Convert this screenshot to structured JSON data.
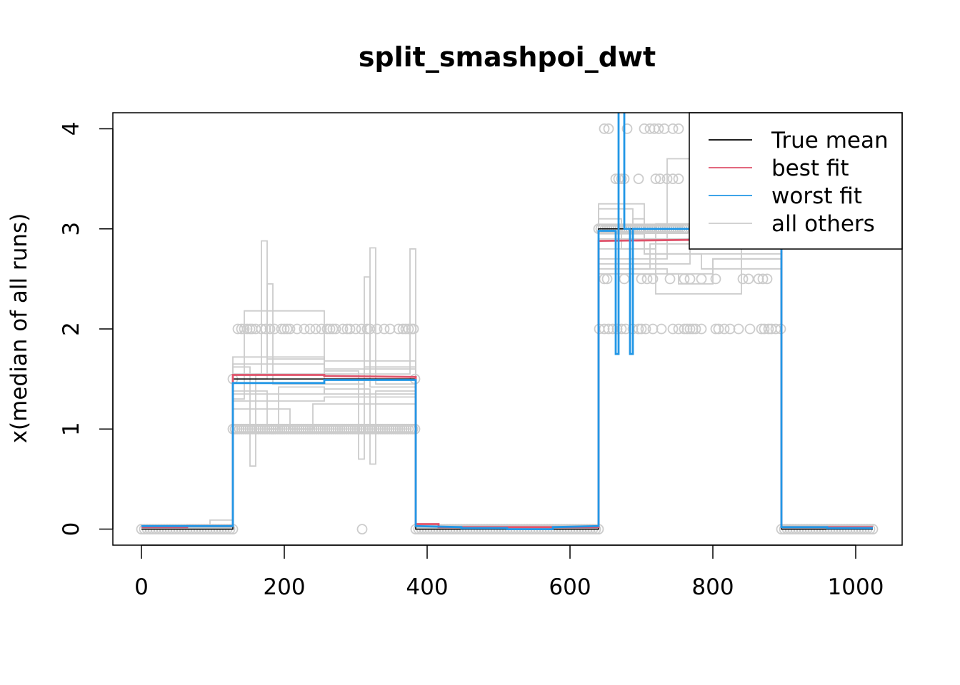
{
  "chart_data": {
    "type": "line",
    "title": "split_smashpoi_dwt",
    "xlabel": "",
    "ylabel": "x(median of all runs)",
    "xlim": [
      -40,
      1065
    ],
    "ylim": [
      -0.16,
      4.16
    ],
    "x_ticks": [
      0,
      200,
      400,
      600,
      800,
      1000
    ],
    "y_ticks": [
      0,
      1,
      2,
      3,
      4
    ],
    "legend_position": "top-right",
    "legend": [
      {
        "label": "True mean",
        "color": "#000000"
      },
      {
        "label": "best fit",
        "color": "#DF536B"
      },
      {
        "label": "worst fit",
        "color": "#2297E6"
      },
      {
        "label": "all others",
        "color": "#CCCCCC"
      }
    ],
    "series": [
      {
        "name": "True mean",
        "color": "#000000",
        "x": [
          0,
          128,
          128,
          384,
          384,
          640,
          640,
          896,
          896,
          1024
        ],
        "y": [
          0,
          0,
          1.5,
          1.5,
          0,
          0,
          3,
          3,
          0,
          0
        ]
      },
      {
        "name": "best fit",
        "color": "#DF536B",
        "x": [
          0,
          64,
          64,
          128,
          128,
          256,
          256,
          384,
          384,
          416,
          416,
          640,
          640,
          896,
          896,
          1024
        ],
        "y": [
          0.02,
          0.02,
          0.03,
          0.03,
          1.54,
          1.54,
          1.53,
          1.52,
          0.05,
          0.05,
          0.02,
          0.02,
          2.88,
          2.9,
          0.02,
          0.02
        ]
      },
      {
        "name": "worst fit",
        "color": "#2297E6",
        "x": [
          0,
          128,
          128,
          256,
          256,
          384,
          384,
          448,
          448,
          512,
          512,
          576,
          576,
          640,
          640,
          664,
          664,
          668,
          668,
          676,
          676,
          684,
          684,
          688,
          688,
          896,
          896,
          960,
          960,
          1024
        ],
        "y": [
          0.03,
          0.03,
          1.46,
          1.46,
          1.49,
          1.49,
          0.03,
          0.02,
          0.01,
          0.01,
          0.0,
          0.0,
          0.02,
          0.03,
          2.98,
          2.98,
          1.75,
          1.75,
          4.4,
          4.4,
          3.0,
          3.0,
          1.75,
          1.75,
          3.0,
          3.0,
          0.02,
          0.02,
          0.01,
          0.01
        ]
      }
    ],
    "others": [
      {
        "x": [
          0,
          96,
          96,
          128,
          128,
          168,
          168,
          176,
          176,
          256,
          256,
          384,
          384,
          640,
          640,
          688,
          688,
          712,
          712,
          896,
          896,
          1024
        ],
        "y": [
          0.02,
          0.02,
          0.09,
          0.09,
          1.55,
          1.55,
          2.88,
          2.88,
          1.7,
          1.7,
          1.6,
          1.6,
          0.03,
          0.03,
          3.2,
          3.2,
          2.6,
          2.6,
          2.85,
          2.85,
          0.02,
          0.02
        ]
      },
      {
        "x": [
          0,
          128,
          128,
          176,
          176,
          192,
          192,
          256,
          256,
          384,
          384,
          640,
          640,
          736,
          736,
          768,
          768,
          896,
          896,
          1024
        ],
        "y": [
          0.01,
          0.01,
          1.38,
          1.38,
          1.0,
          1.0,
          1.42,
          1.42,
          1.35,
          1.35,
          0.01,
          0.01,
          2.7,
          2.7,
          3.7,
          3.7,
          2.85,
          2.85,
          0.01,
          0.01
        ]
      },
      {
        "x": [
          0,
          128,
          128,
          152,
          152,
          160,
          160,
          256,
          256,
          320,
          320,
          328,
          328,
          384,
          384,
          640,
          640,
          704,
          704,
          784,
          784,
          896,
          896,
          1024
        ],
        "y": [
          0.0,
          0.0,
          1.62,
          1.62,
          0.63,
          0.63,
          1.55,
          1.55,
          1.5,
          1.5,
          2.81,
          2.81,
          1.45,
          1.45,
          0.02,
          0.02,
          2.95,
          2.95,
          2.75,
          2.75,
          2.6,
          2.6,
          0.0,
          0.0
        ]
      },
      {
        "x": [
          0,
          128,
          128,
          144,
          144,
          256,
          256,
          312,
          312,
          320,
          320,
          384,
          384,
          640,
          640,
          752,
          752,
          800,
          800,
          896,
          896,
          1024
        ],
        "y": [
          0.01,
          0.01,
          1.3,
          1.3,
          2.18,
          2.18,
          1.45,
          1.45,
          2.52,
          2.52,
          1.42,
          1.42,
          0.01,
          0.01,
          2.55,
          2.55,
          2.45,
          2.45,
          2.7,
          2.7,
          0.01,
          0.01
        ]
      },
      {
        "x": [
          0,
          128,
          128,
          256,
          256,
          304,
          304,
          312,
          312,
          384,
          384,
          640,
          640,
          672,
          672,
          720,
          720,
          896,
          896,
          1024
        ],
        "y": [
          0.02,
          0.02,
          1.72,
          1.72,
          1.58,
          1.58,
          0.7,
          0.7,
          1.62,
          1.62,
          0.02,
          0.02,
          3.1,
          3.1,
          2.8,
          2.8,
          3.05,
          3.05,
          0.02,
          0.02
        ]
      },
      {
        "x": [
          0,
          128,
          128,
          176,
          176,
          184,
          184,
          256,
          256,
          376,
          376,
          384,
          384,
          640,
          640,
          768,
          768,
          896,
          896,
          1024
        ],
        "y": [
          0.03,
          0.03,
          1.5,
          1.5,
          2.45,
          2.45,
          1.45,
          1.45,
          1.55,
          1.55,
          2.8,
          2.8,
          0.03,
          0.03,
          2.65,
          2.65,
          2.9,
          2.9,
          0.03,
          0.03
        ]
      },
      {
        "x": [
          0,
          128,
          128,
          208,
          208,
          240,
          240,
          384,
          384,
          640,
          640,
          720,
          720,
          840,
          840,
          896,
          896,
          1024
        ],
        "y": [
          0.01,
          0.01,
          1.2,
          1.2,
          1.0,
          1.0,
          1.25,
          1.25,
          0.0,
          0.0,
          2.9,
          2.9,
          2.35,
          2.35,
          2.95,
          2.95,
          0.01,
          0.01
        ]
      },
      {
        "x": [
          0,
          128,
          128,
          256,
          256,
          320,
          320,
          328,
          328,
          384,
          384,
          640,
          640,
          688,
          688,
          704,
          704,
          896,
          896,
          1024
        ],
        "y": [
          0.02,
          0.02,
          1.35,
          1.35,
          1.4,
          1.4,
          0.65,
          0.65,
          1.38,
          1.38,
          0.02,
          0.02,
          2.8,
          2.8,
          3.1,
          3.1,
          2.75,
          2.75,
          0.02,
          0.02
        ]
      },
      {
        "x": [
          0,
          128,
          128,
          256,
          256,
          384,
          384,
          640,
          640,
          736,
          736,
          800,
          800,
          896,
          896,
          1024
        ],
        "y": [
          0.01,
          0.01,
          1.65,
          1.65,
          1.68,
          1.68,
          0.01,
          0.01,
          2.6,
          2.6,
          2.55,
          2.55,
          2.7,
          2.7,
          0.01,
          0.01
        ]
      },
      {
        "x": [
          0,
          128,
          128,
          256,
          256,
          384,
          384,
          640,
          640,
          704,
          704,
          896,
          896,
          1024
        ],
        "y": [
          0.02,
          0.02,
          1.28,
          1.28,
          1.32,
          1.32,
          0.02,
          0.02,
          3.25,
          3.25,
          2.9,
          2.9,
          0.02,
          0.02
        ]
      }
    ],
    "point_color": "#CCCCCC",
    "points": [
      {
        "y": 0,
        "x": [
          0,
          4,
          8,
          12,
          16,
          20,
          24,
          28,
          32,
          36,
          40,
          44,
          48,
          52,
          56,
          60,
          64,
          68,
          72,
          76,
          80,
          84,
          88,
          92,
          96,
          100,
          104,
          108,
          112,
          116,
          120,
          124,
          128,
          384,
          388,
          392,
          396,
          400,
          404,
          408,
          412,
          416,
          420,
          424,
          428,
          432,
          436,
          440,
          444,
          448,
          452,
          456,
          460,
          464,
          468,
          472,
          476,
          480,
          484,
          488,
          492,
          496,
          500,
          504,
          508,
          512,
          516,
          520,
          524,
          528,
          532,
          536,
          540,
          544,
          548,
          552,
          556,
          560,
          564,
          568,
          572,
          576,
          580,
          584,
          588,
          592,
          596,
          600,
          604,
          608,
          612,
          616,
          620,
          624,
          628,
          632,
          636,
          640,
          896,
          900,
          904,
          908,
          912,
          916,
          920,
          924,
          928,
          932,
          936,
          940,
          944,
          948,
          952,
          956,
          960,
          964,
          968,
          972,
          976,
          980,
          984,
          988,
          992,
          996,
          1000,
          1004,
          1008,
          1012,
          1016,
          1020,
          1024,
          309
        ]
      },
      {
        "y": 1,
        "x": [
          128,
          131,
          134,
          137,
          140,
          143,
          146,
          149,
          152,
          155,
          158,
          161,
          164,
          167,
          170,
          173,
          176,
          179,
          182,
          185,
          188,
          191,
          194,
          197,
          200,
          203,
          206,
          209,
          212,
          215,
          218,
          221,
          224,
          227,
          230,
          233,
          236,
          239,
          242,
          245,
          248,
          251,
          254,
          257,
          260,
          263,
          266,
          269,
          272,
          275,
          278,
          281,
          284,
          287,
          290,
          293,
          296,
          299,
          302,
          305,
          308,
          311,
          314,
          317,
          320,
          323,
          326,
          329,
          332,
          335,
          338,
          341,
          344,
          347,
          350,
          353,
          356,
          359,
          362,
          365,
          368,
          371,
          374,
          377,
          380,
          383
        ]
      },
      {
        "y": 1.5,
        "x": [
          128,
          383
        ]
      },
      {
        "y": 2,
        "x": [
          135,
          140,
          144,
          148,
          152,
          155,
          160,
          168,
          174,
          180,
          186,
          196,
          200,
          204,
          208,
          218,
          228,
          236,
          244,
          252,
          260,
          264,
          268,
          272,
          282,
          288,
          292,
          300,
          308,
          316,
          320,
          330,
          340,
          348,
          360,
          366,
          370,
          374,
          378,
          381
        ]
      },
      {
        "y": 2,
        "x": [
          641,
          648,
          654,
          660,
          666,
          672,
          678,
          688,
          696,
          700,
          706,
          716,
          728,
          744,
          752,
          760,
          764,
          768,
          772,
          776,
          784,
          804,
          808,
          816,
          824,
          836,
          852,
          868,
          872,
          878,
          882,
          888,
          895
        ]
      },
      {
        "y": 2.5,
        "x": [
          648,
          652,
          676,
          700,
          708,
          716,
          740,
          760,
          768,
          784,
          804,
          842,
          850,
          864,
          870,
          876
        ]
      },
      {
        "y": 3,
        "x": [
          640,
          643,
          646,
          649,
          652,
          655,
          658,
          661,
          664,
          667,
          670,
          673,
          676,
          679,
          682,
          685,
          688,
          691,
          694,
          697,
          700,
          703,
          706,
          709,
          712,
          715,
          718,
          721,
          724,
          727,
          730,
          733,
          736,
          739,
          742,
          745,
          748,
          751,
          754,
          757,
          760,
          763
        ]
      },
      {
        "y": 3.5,
        "x": [
          664,
          668,
          672,
          676,
          696,
          720,
          726,
          736,
          744,
          752,
          784,
          800,
          808,
          816,
          852
        ]
      },
      {
        "y": 4,
        "x": [
          648,
          654,
          680,
          704,
          712,
          718,
          724,
          732,
          744,
          752,
          800,
          808,
          816
        ]
      }
    ]
  }
}
